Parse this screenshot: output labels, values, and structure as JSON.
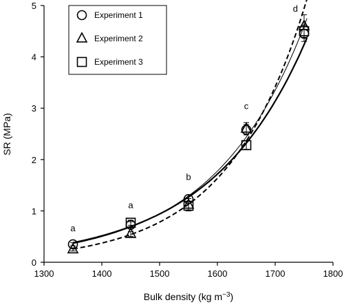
{
  "chart_data": {
    "type": "scatter",
    "xlabel": "Bulk density (kg m",
    "xlabel_unit_exponent": "−3",
    "xlabel_suffix": ")",
    "ylabel": "SR (MPa)",
    "xlim": [
      1300,
      1800
    ],
    "ylim": [
      0,
      5
    ],
    "xticks": [
      "1300",
      "1400",
      "1500",
      "1600",
      "1700",
      "1800"
    ],
    "yticks": [
      "0",
      "1",
      "2",
      "3",
      "4",
      "5"
    ],
    "grid": false,
    "legend_position": "top-left",
    "series": [
      {
        "name": "Experiment 1",
        "marker": "circle",
        "fit_line": "solid-thin",
        "x": [
          1350,
          1450,
          1550,
          1650,
          1750
        ],
        "y": [
          0.35,
          0.73,
          1.23,
          2.58,
          4.45
        ],
        "err": [
          0.03,
          0.06,
          0.08,
          0.1,
          0.15
        ]
      },
      {
        "name": "Experiment 2",
        "marker": "triangle",
        "fit_line": "dashed",
        "x": [
          1350,
          1450,
          1550,
          1650,
          1750
        ],
        "y": [
          0.25,
          0.55,
          1.12,
          2.6,
          4.6
        ],
        "err": [
          0.03,
          0.05,
          0.12,
          0.12,
          0.22
        ]
      },
      {
        "name": "Experiment 3",
        "marker": "square",
        "fit_line": "solid-thick",
        "x": [
          1450,
          1550,
          1650,
          1750
        ],
        "y": [
          0.77,
          1.1,
          2.28,
          4.5
        ],
        "err": [
          0.05,
          0.08,
          0.08,
          0.12
        ]
      }
    ],
    "annotations": [
      {
        "text": "a",
        "x": 1350,
        "y": 0.6
      },
      {
        "text": "a",
        "x": 1450,
        "y": 1.05
      },
      {
        "text": "b",
        "x": 1550,
        "y": 1.6
      },
      {
        "text": "c",
        "x": 1650,
        "y": 2.98
      },
      {
        "text": "d",
        "x": 1735,
        "y": 4.88
      }
    ]
  }
}
